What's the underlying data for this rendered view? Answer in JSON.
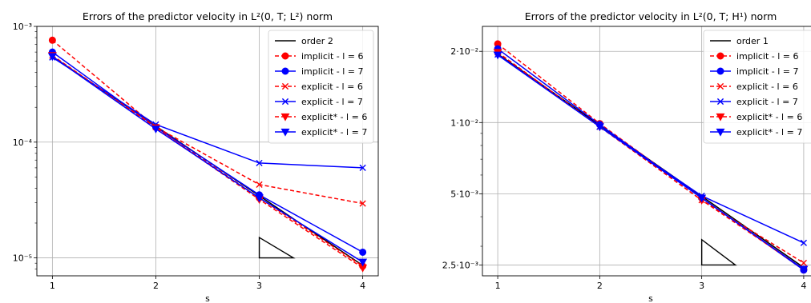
{
  "chart_data": [
    {
      "type": "line",
      "title": "Errors of the predictor velocity in L²(0, T; L²) norm",
      "xlabel": "s",
      "ylabel": "",
      "y_scale": "log",
      "ylim": [
        7e-06,
        0.001
      ],
      "xlim": [
        0.85,
        4.15
      ],
      "x_ticks": [
        1,
        2,
        3,
        4
      ],
      "x_tick_labels": [
        "1",
        "2",
        "3",
        "4"
      ],
      "y_ticks": [
        0.001,
        0.0001,
        1e-05
      ],
      "y_tick_labels": [
        "10⁻³",
        "10⁻⁴",
        "10⁻⁵"
      ],
      "grid": true,
      "legend_position": "top-right",
      "x": [
        1,
        2,
        3,
        4
      ],
      "series": [
        {
          "name": "order 2",
          "color": "#000000",
          "dashed": false,
          "marker": "none",
          "values": [
            0.00055,
            0.0001375,
            3.44e-05,
            8.6e-06
          ]
        },
        {
          "name": "implicit - l = 6",
          "color": "#ff0000",
          "dashed": true,
          "marker": "circle",
          "values": [
            0.00076,
            0.000135,
            3.3e-05,
            8.5e-06
          ]
        },
        {
          "name": "implicit - l = 7",
          "color": "#0000ff",
          "dashed": false,
          "marker": "circle",
          "values": [
            0.0006,
            0.000135,
            3.5e-05,
            1.12e-05
          ]
        },
        {
          "name": "explicit - l = 6",
          "color": "#ff0000",
          "dashed": true,
          "marker": "x",
          "values": [
            0.00056,
            0.000135,
            4.3e-05,
            2.95e-05
          ]
        },
        {
          "name": "explicit - l = 7",
          "color": "#0000ff",
          "dashed": false,
          "marker": "x",
          "values": [
            0.00054,
            0.000142,
            6.6e-05,
            6e-05
          ]
        },
        {
          "name": "explicit* - l = 6",
          "color": "#ff0000",
          "dashed": true,
          "marker": "triangle",
          "values": [
            0.00056,
            0.000133,
            3.2e-05,
            8.2e-06
          ]
        },
        {
          "name": "explicit* - l = 7",
          "color": "#0000ff",
          "dashed": false,
          "marker": "triangle",
          "values": [
            0.00055,
            0.00013,
            3.3e-05,
            9.2e-06
          ]
        }
      ],
      "slope_triangle": {
        "x": [
          3.0,
          3.33
        ],
        "y": [
          1e-05,
          1.5e-05
        ]
      }
    },
    {
      "type": "line",
      "title": "Errors of the predictor velocity in L²(0, T; H¹) norm",
      "xlabel": "s",
      "ylabel": "",
      "y_scale": "log",
      "ylim": [
        0.00225,
        0.0255
      ],
      "xlim": [
        0.85,
        4.15
      ],
      "x_ticks": [
        1,
        2,
        3,
        4
      ],
      "x_tick_labels": [
        "1",
        "2",
        "3",
        "4"
      ],
      "y_ticks": [
        0.02,
        0.01,
        0.005,
        0.0025
      ],
      "y_tick_labels": [
        "2·10⁻²",
        "1·10⁻²",
        "5·10⁻³",
        "2.5·10⁻³"
      ],
      "grid": true,
      "legend_position": "top-right",
      "x": [
        1,
        2,
        3,
        4
      ],
      "series": [
        {
          "name": "order 1",
          "color": "#000000",
          "dashed": false,
          "marker": "none",
          "values": [
            0.0195,
            0.00975,
            0.00488,
            0.00244
          ]
        },
        {
          "name": "implicit - l = 6",
          "color": "#ff0000",
          "dashed": true,
          "marker": "circle",
          "values": [
            0.0215,
            0.0099,
            0.0048,
            0.0024
          ]
        },
        {
          "name": "implicit - l = 7",
          "color": "#0000ff",
          "dashed": false,
          "marker": "circle",
          "values": [
            0.0205,
            0.0098,
            0.0048,
            0.00238
          ]
        },
        {
          "name": "explicit - l = 6",
          "color": "#ff0000",
          "dashed": true,
          "marker": "x",
          "values": [
            0.0198,
            0.0096,
            0.0047,
            0.00255
          ]
        },
        {
          "name": "explicit - l = 7",
          "color": "#0000ff",
          "dashed": false,
          "marker": "x",
          "values": [
            0.0194,
            0.0096,
            0.0049,
            0.0031
          ]
        },
        {
          "name": "explicit* - l = 6",
          "color": "#ff0000",
          "dashed": true,
          "marker": "triangle",
          "values": [
            0.0198,
            0.0096,
            0.0047,
            0.0024
          ]
        },
        {
          "name": "explicit* - l = 7",
          "color": "#0000ff",
          "dashed": false,
          "marker": "triangle",
          "values": [
            0.0193,
            0.0096,
            0.0048,
            0.0024
          ]
        }
      ],
      "slope_triangle": {
        "x": [
          3.0,
          3.33
        ],
        "y": [
          0.0025,
          0.0032
        ]
      }
    }
  ]
}
